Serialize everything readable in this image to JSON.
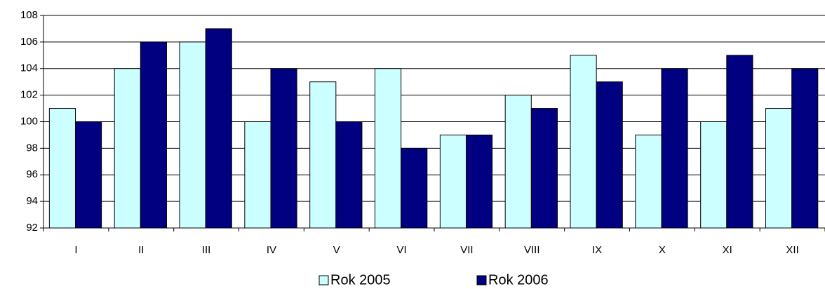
{
  "chart_data": {
    "type": "bar",
    "categories": [
      "I",
      "II",
      "III",
      "IV",
      "V",
      "VI",
      "VII",
      "VIII",
      "IX",
      "X",
      "XI",
      "XII"
    ],
    "series": [
      {
        "name": "Rok 2005",
        "color": "#ccffff",
        "values": [
          101,
          104,
          106,
          100,
          103,
          104,
          99,
          102,
          105,
          99,
          100,
          101
        ]
      },
      {
        "name": "Rok 2006",
        "color": "#000080",
        "values": [
          100,
          106,
          107,
          104,
          100,
          98,
          99,
          101,
          103,
          104,
          105,
          104
        ]
      }
    ],
    "ylim": [
      92,
      108
    ],
    "yticks": [
      92,
      94,
      96,
      98,
      100,
      102,
      104,
      106,
      108
    ],
    "grid": true,
    "legend": "bottom"
  }
}
